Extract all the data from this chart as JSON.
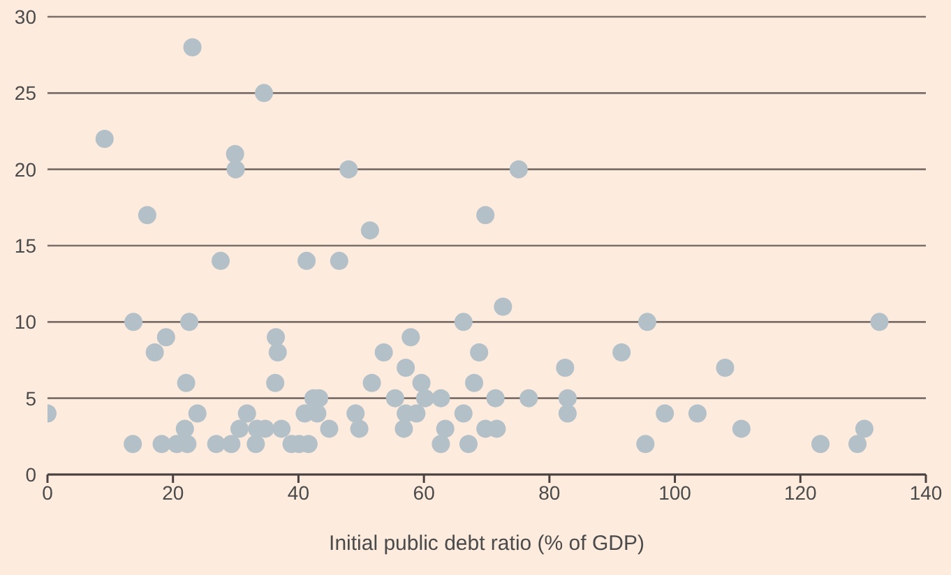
{
  "chart_data": {
    "type": "scatter",
    "xlabel": "Initial public debt ratio (% of GDP)",
    "x": [
      0,
      9.1,
      13.6,
      13.7,
      15.9,
      17.1,
      18.2,
      18.9,
      20.6,
      22.1,
      21.9,
      22.3,
      22.6,
      23.1,
      23.9,
      26.9,
      27.6,
      29.3,
      29.9,
      30.0,
      30.6,
      31.8,
      33.2,
      33.4,
      34.5,
      34.7,
      36.4,
      36.7,
      36.3,
      37.3,
      38.9,
      40.1,
      41.0,
      41.3,
      41.6,
      42.4,
      43.3,
      43.0,
      44.9,
      46.5,
      48.0,
      49.1,
      49.7,
      51.4,
      51.7,
      53.6,
      55.4,
      57.1,
      56.8,
      57.1,
      57.9,
      58.8,
      59.6,
      60.2,
      62.7,
      62.7,
      63.4,
      66.3,
      66.3,
      67.1,
      68.0,
      68.8,
      69.8,
      75.1,
      69.8,
      71.6,
      71.4,
      72.6,
      76.7,
      82.5,
      82.9,
      82.9,
      91.5,
      95.6,
      95.3,
      98.4,
      103.6,
      108.0,
      110.6,
      123.2,
      129.1,
      130.2,
      132.6
    ],
    "series": [
      {
        "color": "#b3c0c8",
        "values": [
          4,
          22,
          2,
          10,
          17,
          8,
          2,
          9,
          2,
          6,
          3,
          2,
          10,
          28,
          4,
          2,
          14,
          2,
          21,
          20,
          3,
          4,
          2,
          3,
          25,
          3,
          9,
          8,
          6,
          3,
          2,
          2,
          4,
          14,
          2,
          5,
          5,
          4,
          3,
          14,
          20,
          4,
          3,
          16,
          6,
          8,
          5,
          7,
          3,
          4,
          9,
          4,
          6,
          5,
          5,
          2,
          3,
          4,
          10,
          2,
          6,
          8,
          17,
          20,
          3,
          3,
          5,
          11,
          5,
          7,
          5,
          4,
          8,
          10,
          2,
          4,
          4,
          7,
          3,
          2,
          2,
          3,
          10
        ]
      }
    ],
    "xlim": [
      0,
      140
    ],
    "xticks": [
      0,
      20,
      40,
      60,
      80,
      100,
      120,
      140
    ],
    "ylim": [
      0,
      30
    ],
    "yticks": [
      0,
      5,
      10,
      15,
      20,
      25,
      30
    ],
    "grid": "y",
    "marker": "circle",
    "legend": false
  }
}
